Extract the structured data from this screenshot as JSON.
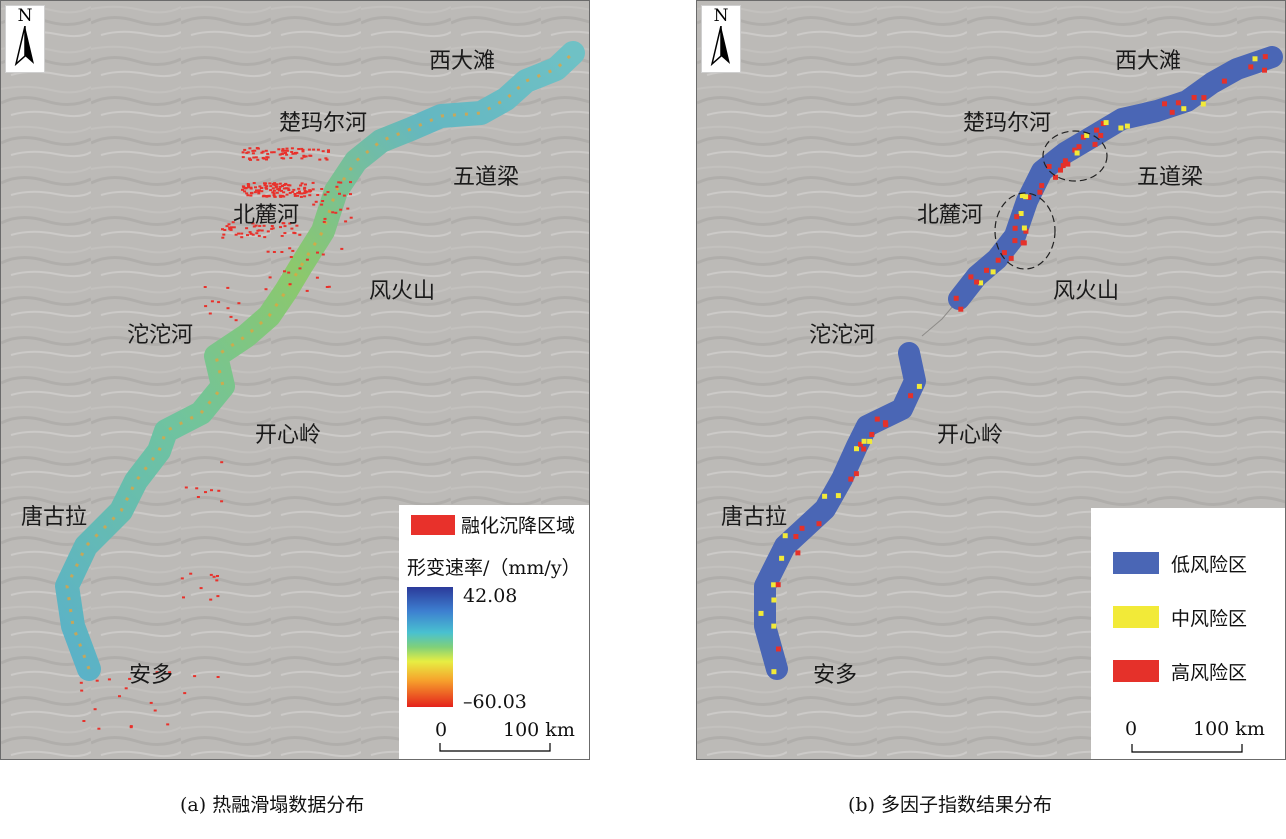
{
  "panel_a": {
    "north_label": "N",
    "places": [
      "西大滩",
      "楚玛尔河",
      "五道梁",
      "北麓河",
      "风火山",
      "沱沱河",
      "开心岭",
      "唐古拉",
      "安多"
    ],
    "legend": {
      "subsidence_label": "融化沉降区域",
      "subsidence_color": "#e8312b",
      "rate_title": "形变速率/（mm/y）",
      "rate_max": "42.08",
      "rate_min": "–60.03"
    },
    "scale": {
      "zero": "0",
      "distance": "100 km"
    },
    "caption": "(a) 热融滑塌数据分布"
  },
  "panel_b": {
    "north_label": "N",
    "places": [
      "西大滩",
      "楚玛尔河",
      "五道梁",
      "北麓河",
      "风火山",
      "沱沱河",
      "开心岭",
      "唐古拉",
      "安多"
    ],
    "legend": [
      {
        "label": "低风险区",
        "color": "#4a66b5"
      },
      {
        "label": "中风险区",
        "color": "#f2ea38"
      },
      {
        "label": "高风险区",
        "color": "#e5312a"
      }
    ],
    "scale": {
      "zero": "0",
      "distance": "100 km"
    },
    "caption": "(b) 多因子指数结果分布"
  }
}
